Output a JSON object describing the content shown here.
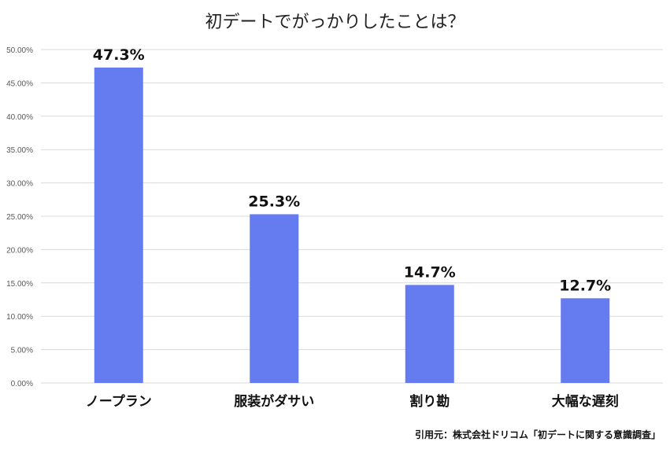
{
  "chart_data": {
    "type": "bar",
    "title": "初デートでがっかりしたことは？",
    "categories": [
      "ノープラン",
      "服装がダサい",
      "割り勘",
      "大幅な遅刻"
    ],
    "values": [
      47.3,
      25.3,
      14.7,
      12.7
    ],
    "data_labels": [
      "47.3%",
      "25.3%",
      "14.7%",
      "12.7%"
    ],
    "ylim": [
      0,
      50
    ],
    "yticks": [
      0,
      5,
      10,
      15,
      20,
      25,
      30,
      35,
      40,
      45,
      50
    ],
    "ytick_labels": [
      "0.00%",
      "5.00%",
      "10.00%",
      "15.00%",
      "20.00%",
      "25.00%",
      "30.00%",
      "35.00%",
      "40.00%",
      "45.00%",
      "50.00%"
    ],
    "grid": true,
    "bar_color": "#647cf0",
    "source": "引用元：株式会社ドリコム「初デートに関する意識調査」"
  }
}
